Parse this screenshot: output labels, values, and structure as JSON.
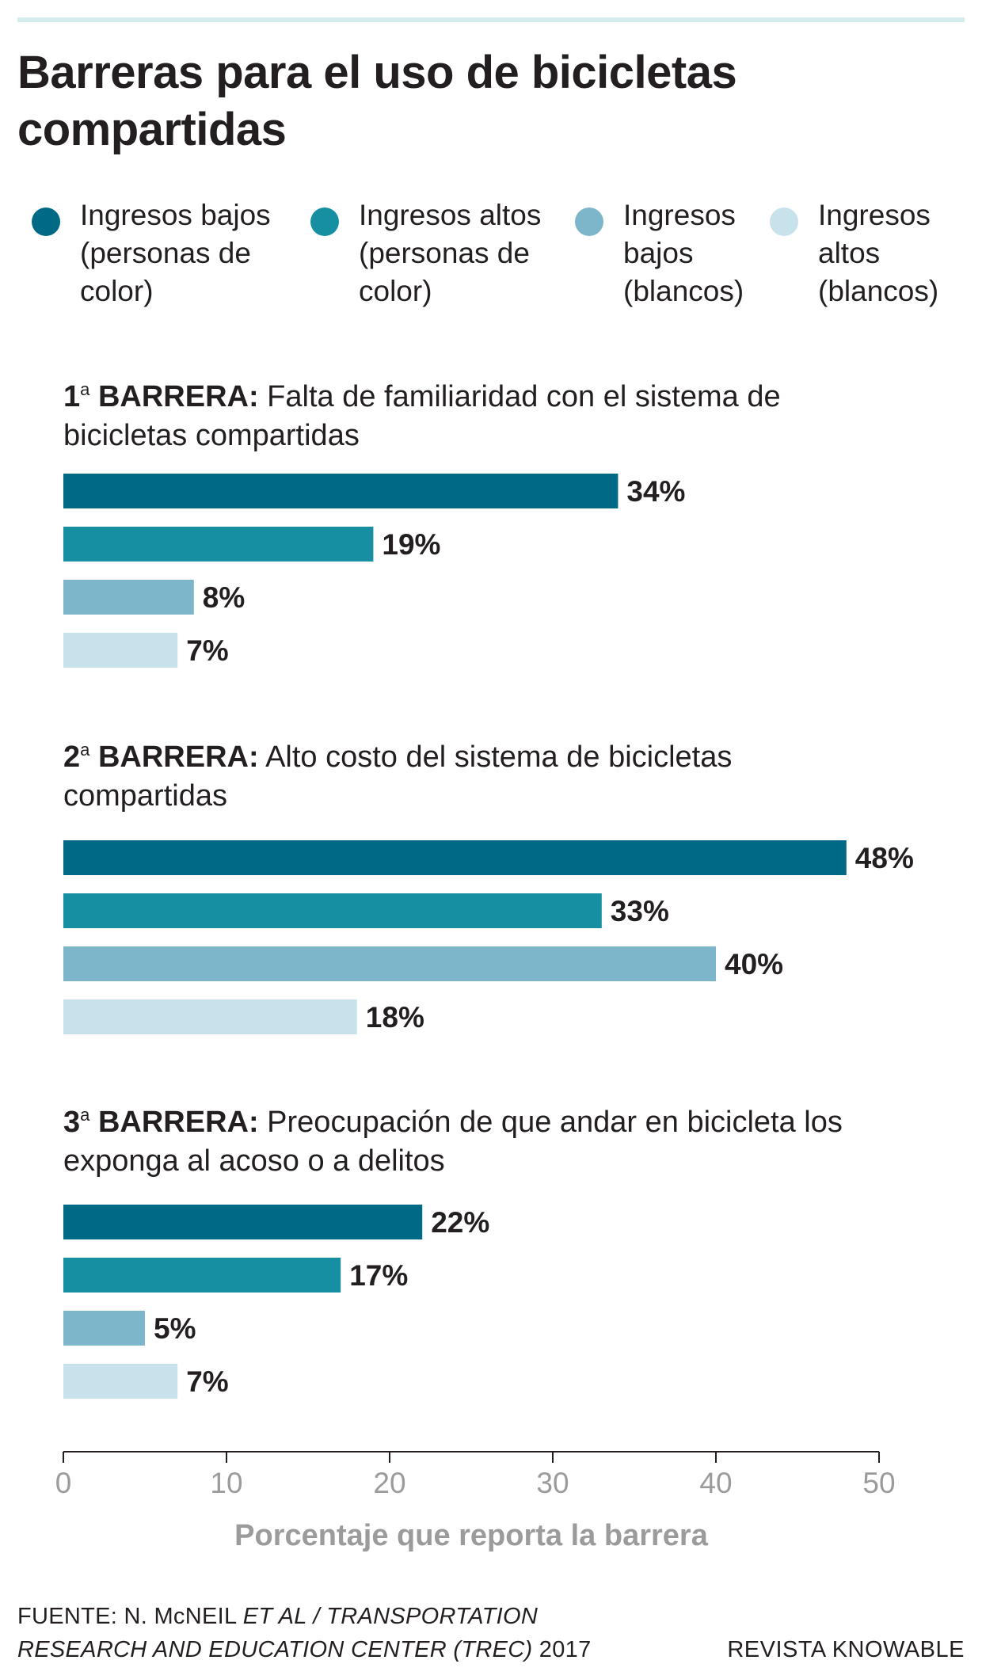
{
  "title": "Barreras para el uso de bicicletas compartidas",
  "colors": {
    "ingresos_bajos_color": "#006a86",
    "ingresos_altos_color": "#168fa2",
    "ingresos_bajos_blancos": "#7db6ca",
    "ingresos_altos_blancos": "#c8e2eb",
    "axis": "#231f20",
    "axis_text": "#9b9b9b"
  },
  "legend": [
    {
      "label": "Ingresos bajos (personas de color)",
      "color": "#006a86"
    },
    {
      "label": "Ingresos altos (personas de color)",
      "color": "#168fa2"
    },
    {
      "label": "Ingresos bajos (blancos)",
      "color": "#7db6ca"
    },
    {
      "label": "Ingresos altos (blancos)",
      "color": "#c8e2eb"
    }
  ],
  "barriers": [
    {
      "number": "1",
      "ordinal": "a",
      "label": "BARRERA:",
      "text": "Falta de familiaridad con el sistema de bicicletas compartidas"
    },
    {
      "number": "2",
      "ordinal": "a",
      "label": "BARRERA:",
      "text": "Alto costo del sistema de bicicletas compartidas"
    },
    {
      "number": "3",
      "ordinal": "a",
      "label": "BARRERA:",
      "text": "Preocupación de que andar en bicicleta los exponga al acoso o a delitos"
    }
  ],
  "chart_data": {
    "type": "bar",
    "orientation": "horizontal",
    "title": "Barreras para el uso de bicicletas compartidas",
    "xlabel": "Porcentaje que reporta la barrera",
    "ylabel": "",
    "xlim": [
      0,
      50
    ],
    "xticks": [
      0,
      10,
      20,
      30,
      40,
      50
    ],
    "grid": false,
    "legend_position": "top",
    "value_suffix": "%",
    "categories": [
      "Falta de familiaridad con el sistema de bicicletas compartidas",
      "Alto costo del sistema de bicicletas compartidas",
      "Preocupación de que andar en bicicleta los exponga al acoso o a delitos"
    ],
    "series": [
      {
        "name": "Ingresos bajos (personas de color)",
        "color": "#006a86",
        "values": [
          34,
          48,
          22
        ]
      },
      {
        "name": "Ingresos altos (personas de color)",
        "color": "#168fa2",
        "values": [
          19,
          33,
          17
        ]
      },
      {
        "name": "Ingresos bajos (blancos)",
        "color": "#7db6ca",
        "values": [
          8,
          40,
          5
        ]
      },
      {
        "name": "Ingresos altos (blancos)",
        "color": "#c8e2eb",
        "values": [
          7,
          18,
          7
        ]
      }
    ]
  },
  "source": {
    "prefix": "FUENTE: N. McNEIL ",
    "italic_1": "ET AL / TRANSPORTATION",
    "italic_2": "RESEARCH AND EDUCATION CENTER (TREC)",
    "year": " 2017"
  },
  "credit": "REVISTA KNOWABLE"
}
